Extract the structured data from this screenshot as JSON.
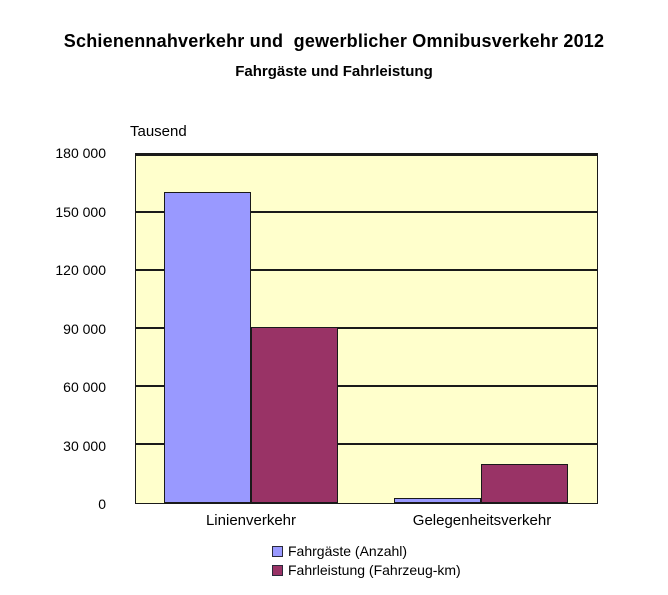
{
  "chart_data": {
    "type": "bar",
    "title": "Schienennahverkehr und  gewerblicher Omnibusverkehr 2012",
    "subtitle": "Fahrgäste und Fahrleistung",
    "unit_label": "Tausend",
    "categories": [
      "Linienverkehr",
      "Gelegenheitsverkehr"
    ],
    "series": [
      {
        "name": "Fahrgäste (Anzahl)",
        "color": "#9999FF",
        "values": [
          161000,
          2500
        ]
      },
      {
        "name": "Fahrleistung (Fahrzeug-km)",
        "color": "#993366",
        "values": [
          91000,
          20400
        ]
      }
    ],
    "ylim": [
      0,
      180000
    ],
    "ytick_interval": 30000,
    "yticks": [
      0,
      30000,
      60000,
      90000,
      120000,
      150000,
      180000
    ],
    "ytick_labels": [
      "0",
      "30 000",
      "60 000",
      "90 000",
      "120 000",
      "150 000",
      "180 000"
    ],
    "grid": true,
    "legend_position": "bottom",
    "plot_bg_color": "#FFFFCC",
    "page_bg_color": "#FFFFFF",
    "line_color": "#1a1a1a"
  }
}
